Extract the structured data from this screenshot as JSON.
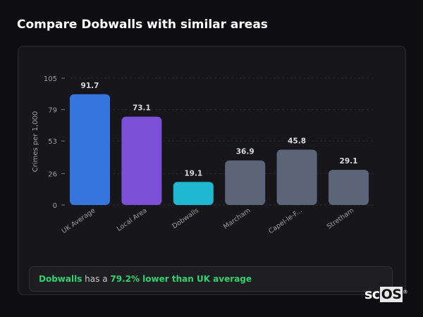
{
  "title": "Compare Dobwalls with similar areas",
  "chart_data": {
    "type": "bar",
    "title": "",
    "xlabel": "",
    "ylabel": "Crimes per 1,000",
    "ylim": [
      0,
      105
    ],
    "yticks": [
      0,
      26,
      53,
      79,
      105
    ],
    "grid": true,
    "categories": [
      "UK Average",
      "Local Area",
      "Dobwalls",
      "Marcham",
      "Capel-le-F...",
      "Stretham"
    ],
    "values": [
      91.7,
      73.1,
      19.1,
      36.9,
      45.8,
      29.1
    ],
    "data_labels": [
      "91.7",
      "73.1",
      "19.1",
      "36.9",
      "45.8",
      "29.1"
    ],
    "colors": [
      "#3575dd",
      "#7b4fd6",
      "#1fb8d0",
      "#5b6577",
      "#5b6577",
      "#5b6577"
    ]
  },
  "footer": {
    "place": "Dobwalls",
    "text_mid": " has a ",
    "highlight": "79.2% lower than UK average"
  },
  "logo": {
    "text_a": "sc",
    "text_b": "OS",
    "mark": "®"
  }
}
